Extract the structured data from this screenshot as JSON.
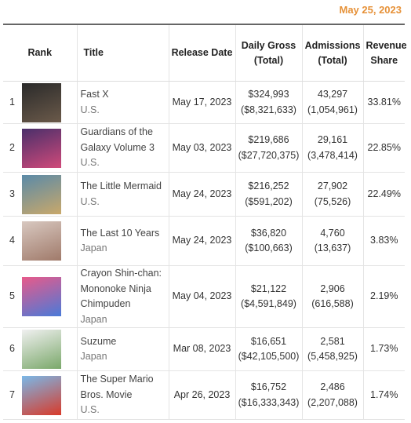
{
  "date": "May 25, 2023",
  "table": {
    "headers": [
      "Rank",
      "Title",
      "Release Date",
      "Daily Gross (Total)",
      "Admissions (Total)",
      "Revenue Share"
    ],
    "rows": [
      {
        "rank": "1",
        "title": "Fast X",
        "country": "U.S.",
        "release": "May 17, 2023",
        "gross": "$324,993",
        "gross_total": "($8,321,633)",
        "admissions": "43,297",
        "admissions_total": "(1,054,961)",
        "share": "33.81%"
      },
      {
        "rank": "2",
        "title": "Guardians of the Galaxy Volume 3",
        "country": "U.S.",
        "release": "May 03, 2023",
        "gross": "$219,686",
        "gross_total": "($27,720,375)",
        "admissions": "29,161",
        "admissions_total": "(3,478,414)",
        "share": "22.85%"
      },
      {
        "rank": "3",
        "title": "The Little Mermaid",
        "country": "U.S.",
        "release": "May 24, 2023",
        "gross": "$216,252",
        "gross_total": "($591,202)",
        "admissions": "27,902",
        "admissions_total": "(75,526)",
        "share": "22.49%"
      },
      {
        "rank": "4",
        "title": "The Last 10 Years",
        "country": "Japan",
        "release": "May 24, 2023",
        "gross": "$36,820",
        "gross_total": "($100,663)",
        "admissions": "4,760",
        "admissions_total": "(13,637)",
        "share": "3.83%"
      },
      {
        "rank": "5",
        "title": "Crayon Shin-chan: Mononoke Ninja Chimpuden",
        "country": "Japan",
        "release": "May 04, 2023",
        "gross": "$21,122",
        "gross_total": "($4,591,849)",
        "admissions": "2,906",
        "admissions_total": "(616,588)",
        "share": "2.19%"
      },
      {
        "rank": "6",
        "title": "Suzume",
        "country": "Japan",
        "release": "Mar 08, 2023",
        "gross": "$16,651",
        "gross_total": "($42,105,500)",
        "admissions": "2,581",
        "admissions_total": "(5,458,925)",
        "share": "1.73%"
      },
      {
        "rank": "7",
        "title": "The Super Mario Bros. Movie",
        "country": "U.S.",
        "release": "Apr 26, 2023",
        "gross": "$16,752",
        "gross_total": "($16,333,343)",
        "admissions": "2,486",
        "admissions_total": "(2,207,088)",
        "share": "1.74%"
      }
    ]
  }
}
